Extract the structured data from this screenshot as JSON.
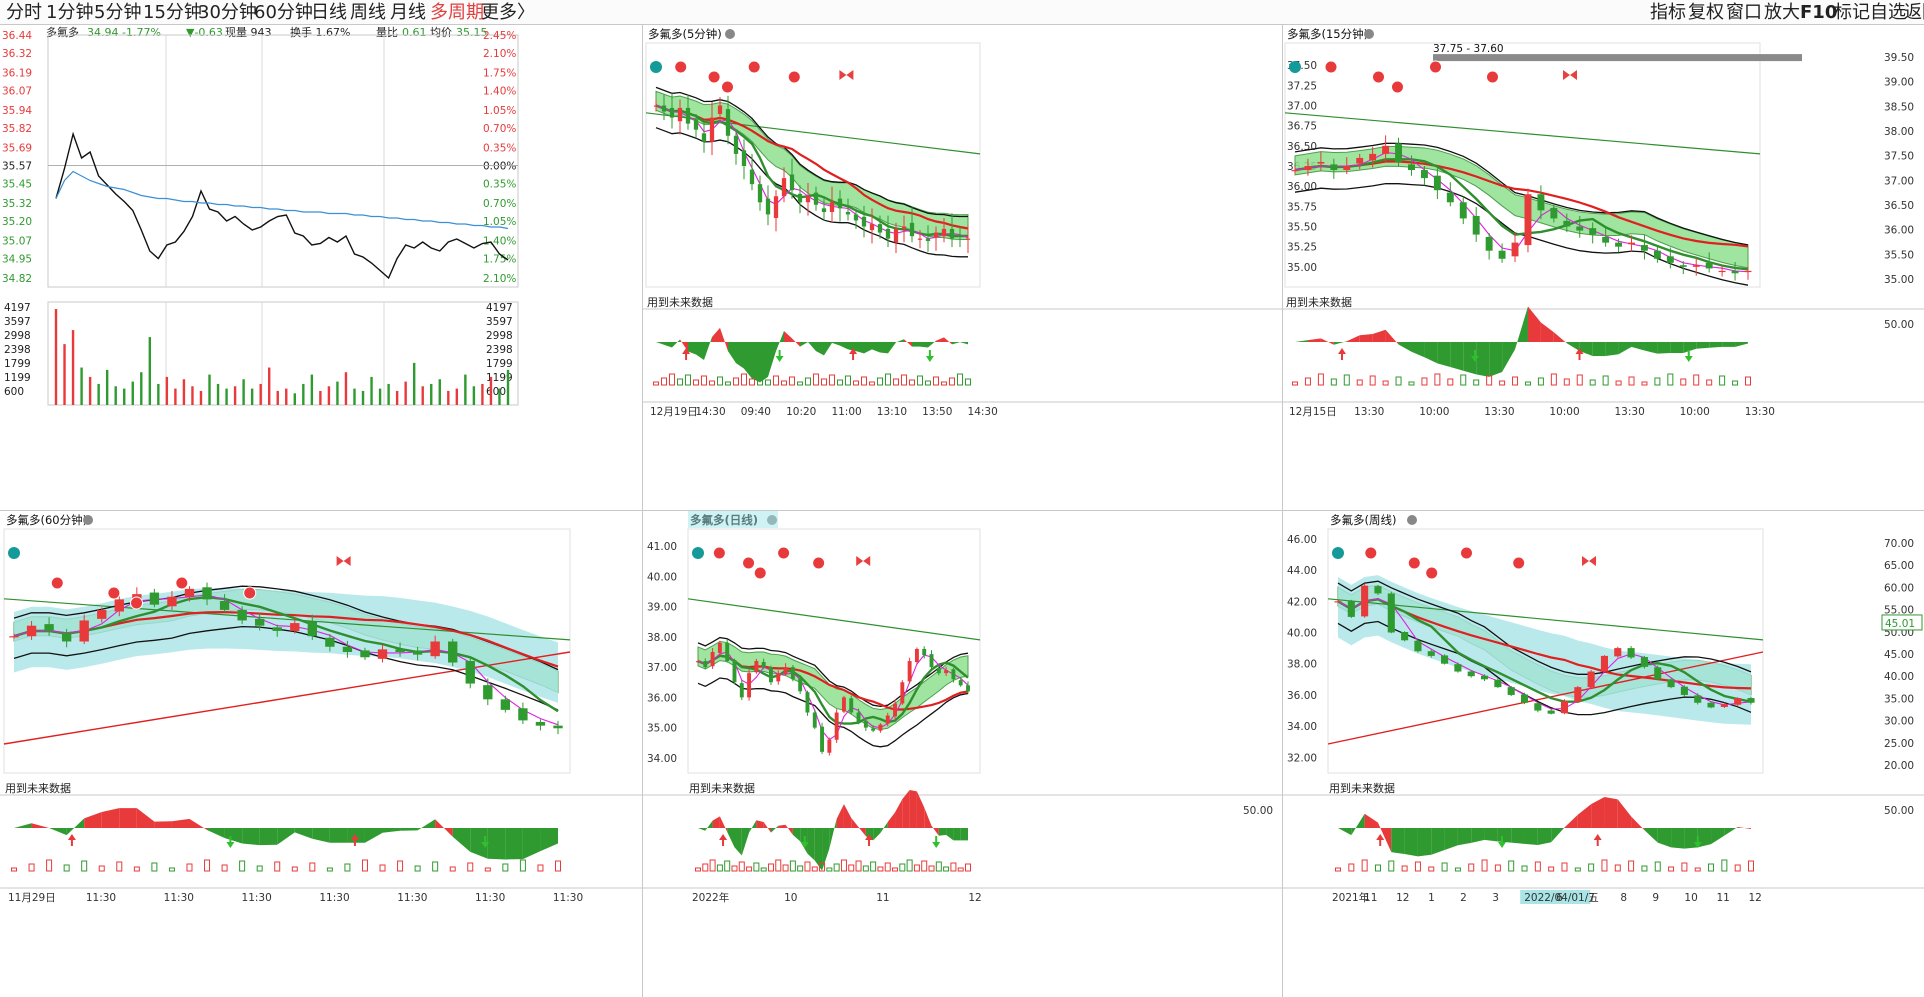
{
  "toolbar": {
    "periods": [
      "分时",
      "1分钟",
      "5分钟",
      "15分钟",
      "30分钟",
      "60分钟",
      "日线",
      "周线",
      "月线",
      "多周期",
      "更多〉"
    ],
    "active_period": "多周期",
    "right_items": [
      "指标",
      "复权",
      "窗口",
      "放大",
      "F10",
      "标记",
      "自选",
      "返回"
    ]
  },
  "colors": {
    "up": "#e83a3a",
    "down": "#2f9a2f",
    "green_band": "#8fe08f",
    "cyan_band": "#a9e4e6",
    "ma_black": "#111111",
    "ma_green": "#2f8f2f",
    "ma_red": "#e02020",
    "ma_magenta": "#e020e0",
    "avg_line": "#3b8fd8"
  },
  "chart_data": [
    {
      "id": "intraday",
      "type": "line",
      "title": "多氟多",
      "quote": {
        "price": "34.94",
        "change_pct": "-1.77%",
        "change": "▼-0.63",
        "volume_label": "现量",
        "volume": "943",
        "turnover_label": "换手",
        "turnover": "1.67%",
        "ratio_label": "量比",
        "ratio": "0.61",
        "avg_label": "均价",
        "avg": "35.15"
      },
      "price_ticks": [
        "36.44",
        "36.32",
        "36.19",
        "36.07",
        "35.94",
        "35.82",
        "35.69",
        "35.57",
        "35.45",
        "35.32",
        "35.20",
        "35.07",
        "34.95",
        "34.82"
      ],
      "pct_ticks": [
        "2.45%",
        "2.10%",
        "1.75%",
        "1.40%",
        "1.05%",
        "0.70%",
        "0.35%",
        "0.00%",
        "0.35%",
        "0.70%",
        "1.05%",
        "1.40%",
        "1.75%",
        "2.10%"
      ],
      "vol_ticks": [
        "4197",
        "3597",
        "2998",
        "2398",
        "1799",
        "1199",
        "600"
      ],
      "ylim": [
        34.76,
        36.44
      ],
      "prev_close": 35.57,
      "price": [
        35.35,
        35.55,
        35.78,
        35.62,
        35.66,
        35.5,
        35.44,
        35.38,
        35.33,
        35.27,
        35.14,
        35.0,
        34.95,
        35.04,
        35.06,
        35.13,
        35.23,
        35.4,
        35.28,
        35.26,
        35.2,
        35.23,
        35.18,
        35.14,
        35.16,
        35.2,
        35.23,
        35.24,
        35.12,
        35.1,
        35.04,
        35.05,
        35.09,
        35.06,
        35.1,
        34.98,
        34.96,
        34.92,
        34.87,
        34.82,
        34.95,
        35.04,
        35.02,
        35.06,
        35.02,
        35.0,
        35.06,
        35.08,
        35.05,
        35.02,
        35.05,
        35.06,
        34.98,
        34.94
      ],
      "avg": [
        35.35,
        35.47,
        35.53,
        35.5,
        35.47,
        35.45,
        35.43,
        35.42,
        35.41,
        35.39,
        35.37,
        35.36,
        35.35,
        35.35,
        35.34,
        35.33,
        35.33,
        35.32,
        35.32,
        35.31,
        35.31,
        35.3,
        35.3,
        35.29,
        35.29,
        35.28,
        35.28,
        35.27,
        35.27,
        35.26,
        35.26,
        35.26,
        35.25,
        35.25,
        35.25,
        35.24,
        35.24,
        35.23,
        35.23,
        35.22,
        35.22,
        35.21,
        35.21,
        35.2,
        35.2,
        35.19,
        35.19,
        35.18,
        35.18,
        35.17,
        35.17,
        35.16,
        35.16,
        35.15
      ],
      "volumes": [
        4100,
        2600,
        3200,
        1600,
        1200,
        900,
        1500,
        800,
        700,
        1000,
        1400,
        2900,
        900,
        1200,
        700,
        1100,
        800,
        600,
        1300,
        900,
        700,
        800,
        1100,
        700,
        900,
        1600,
        600,
        700,
        500,
        900,
        1300,
        600,
        800,
        1000,
        1400,
        700,
        600,
        1200,
        700,
        900,
        600,
        1000,
        1800,
        800,
        900,
        1100,
        600,
        700,
        1300,
        800,
        900,
        1200,
        700,
        1500
      ]
    },
    {
      "id": "m5",
      "type": "candlestick",
      "title": "多氟多(5分钟)",
      "ylim": [
        34.6,
        36.6
      ],
      "time_labels": [
        "12月19日",
        "14:30",
        "09:40",
        "10:20",
        "11:00",
        "13:10",
        "13:50",
        "14:30"
      ],
      "future_label": "用到未来数据",
      "ind_labels": [],
      "close": [
        36.1,
        36.05,
        36.0,
        36.08,
        35.95,
        35.9,
        35.8,
        36.0,
        36.1,
        35.85,
        35.7,
        35.6,
        35.45,
        35.3,
        35.2,
        35.35,
        35.5,
        35.4,
        35.3,
        35.35,
        35.28,
        35.22,
        35.3,
        35.25,
        35.2,
        35.15,
        35.1,
        35.12,
        35.05,
        35.0,
        35.08,
        35.1,
        35.02,
        35.0,
        34.98,
        35.05,
        35.08,
        35.0,
        35.02,
        35.0
      ]
    },
    {
      "id": "m15",
      "type": "candlestick",
      "title": "多氟多(15分钟)",
      "ylim": [
        34.75,
        37.75
      ],
      "left_ticks": [
        "37.50",
        "37.25",
        "37.00",
        "36.75",
        "36.50",
        "36.25",
        "36.00",
        "35.75",
        "35.50",
        "35.25",
        "35.00"
      ],
      "right_ticks": [
        "39.50",
        "39.00",
        "38.50",
        "38.00",
        "37.50",
        "37.00",
        "36.50",
        "36.00",
        "35.50",
        "35.00"
      ],
      "annotation": "37.75 - 37.60",
      "time_labels": [
        "12月15日",
        "13:30",
        "10:00",
        "13:30",
        "10:00",
        "13:30",
        "10:00",
        "13:30"
      ],
      "future_label": "用到未来数据",
      "ind_labels": [
        "50.00"
      ],
      "close": [
        36.2,
        36.25,
        36.3,
        36.2,
        36.25,
        36.35,
        36.4,
        36.5,
        36.3,
        36.2,
        36.1,
        35.95,
        35.8,
        35.6,
        35.4,
        35.2,
        35.1,
        35.3,
        35.9,
        35.7,
        35.6,
        35.5,
        35.45,
        35.4,
        35.3,
        35.25,
        35.3,
        35.2,
        35.1,
        35.05,
        35.0,
        35.02,
        34.98,
        34.95,
        34.92,
        34.95
      ]
    },
    {
      "id": "m60",
      "type": "candlestick",
      "title": "多氟多(60分钟)",
      "ylim": [
        34.0,
        38.6
      ],
      "time_labels": [
        "11月29日",
        "11:30",
        "11:30",
        "11:30",
        "11:30",
        "11:30",
        "11:30",
        "11:30"
      ],
      "future_label": "用到未来数据",
      "ind_labels": [],
      "close": [
        36.6,
        36.8,
        36.7,
        36.5,
        36.9,
        37.1,
        37.3,
        37.4,
        37.2,
        37.35,
        37.5,
        37.3,
        37.1,
        36.9,
        36.8,
        36.7,
        36.85,
        36.6,
        36.4,
        36.3,
        36.2,
        36.35,
        36.3,
        36.25,
        36.5,
        36.1,
        35.7,
        35.4,
        35.2,
        35.0,
        34.9,
        34.85
      ]
    },
    {
      "id": "daily",
      "type": "candlestick",
      "title": "多氟多(日线)",
      "ylim": [
        33.5,
        41.5
      ],
      "left_ticks": [
        "41.00",
        "40.00",
        "39.00",
        "38.00",
        "37.00",
        "36.00",
        "35.00",
        "34.00"
      ],
      "time_labels": [
        "2022年",
        "10",
        "11",
        "12"
      ],
      "future_label": "用到未来数据",
      "ind_labels": [
        "50.00"
      ],
      "close": [
        37.2,
        37.0,
        37.5,
        37.8,
        37.2,
        36.5,
        36.0,
        36.8,
        37.2,
        37.0,
        36.5,
        36.8,
        37.0,
        36.6,
        36.2,
        35.5,
        35.0,
        34.2,
        34.6,
        35.5,
        36.0,
        35.5,
        35.2,
        35.0,
        34.9,
        35.1,
        35.4,
        35.8,
        36.5,
        37.2,
        37.6,
        37.4,
        37.0,
        36.8,
        36.9,
        36.6,
        36.4,
        36.2
      ]
    },
    {
      "id": "weekly",
      "type": "candlestick",
      "title": "多氟多(周线)",
      "ylim": [
        31.0,
        46.5
      ],
      "left_ticks": [
        "46.00",
        "44.00",
        "42.00",
        "40.00",
        "38.00",
        "36.00",
        "34.00",
        "32.00"
      ],
      "right_ticks": [
        "70.00",
        "65.00",
        "60.00",
        "55.00",
        "50.00",
        "45.00",
        "40.00",
        "35.00",
        "30.00",
        "25.00",
        "20.00"
      ],
      "last_label": "45.01",
      "time_labels": [
        "2021年",
        "11",
        "12",
        "1",
        "2",
        "3",
        "2022/04/01/五",
        "6",
        "7",
        "8",
        "9",
        "10",
        "11",
        "12"
      ],
      "future_label": "用到未来数据",
      "ind_labels": [
        "50.00"
      ],
      "close": [
        42.0,
        41.0,
        43.0,
        42.5,
        40.0,
        39.5,
        38.8,
        38.5,
        38.0,
        37.5,
        37.2,
        37.0,
        36.5,
        36.0,
        35.5,
        35.0,
        34.8,
        35.6,
        36.5,
        37.5,
        38.5,
        39.0,
        38.4,
        37.8,
        37.0,
        36.5,
        36.0,
        35.5,
        35.2,
        35.4,
        35.8,
        35.5
      ]
    }
  ]
}
